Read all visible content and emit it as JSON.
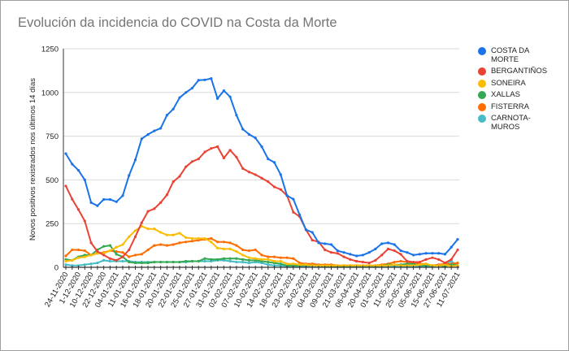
{
  "chart_data": {
    "type": "line",
    "title": "Evolución da incidencia do COVID na Costa da Morte",
    "xlabel": "",
    "ylabel": "Novos positivos rexistrados nos últimos 14 días",
    "ylim": [
      0,
      1250
    ],
    "yticks": [
      0,
      250,
      500,
      750,
      1000,
      1250
    ],
    "grid": true,
    "legend_position": "right",
    "x_tick_labels": [
      "24-11-2020",
      "1-12-2020",
      "10-12-2020",
      "22-12-2020",
      "04-01-2021",
      "11-01-2021",
      "16-01-2021",
      "18-01-2021",
      "20-01-2021",
      "22-01-2021",
      "25-01-2021",
      "27-01-2021",
      "31-01-2021",
      "02-02-2021",
      "07-02-2021",
      "10-02-2021",
      "14-02-2021",
      "18-02-2021",
      "23-02-2021",
      "28-02-2021",
      "04-03-2021",
      "09-03-2021",
      "21-03-2021",
      "06-04-2021",
      "20-04-2021",
      "01-05-2021",
      "11-05-2021",
      "25-05-2021",
      "05-06-2021",
      "15-06-2021",
      "27-06-2021",
      "11-07-2021"
    ],
    "n_points": 63,
    "series": [
      {
        "name": "COSTA DA MORTE",
        "color": "#1a73e8",
        "values": [
          650,
          590,
          555,
          500,
          370,
          352,
          388,
          388,
          375,
          410,
          525,
          615,
          735,
          760,
          780,
          795,
          870,
          905,
          970,
          1000,
          1025,
          1070,
          1072,
          1080,
          965,
          1010,
          975,
          870,
          790,
          760,
          740,
          690,
          620,
          600,
          530,
          410,
          390,
          300,
          215,
          200,
          140,
          135,
          130,
          95,
          85,
          75,
          65,
          70,
          85,
          105,
          135,
          140,
          130,
          95,
          85,
          70,
          75,
          80,
          80,
          80,
          75,
          115,
          160
        ]
      },
      {
        "name": "BERGANTIÑOS",
        "color": "#ea4335",
        "values": [
          465,
          390,
          330,
          265,
          140,
          90,
          70,
          50,
          40,
          60,
          100,
          175,
          255,
          320,
          335,
          370,
          415,
          490,
          520,
          575,
          605,
          620,
          660,
          680,
          690,
          625,
          670,
          630,
          565,
          545,
          530,
          510,
          490,
          460,
          445,
          410,
          315,
          290,
          215,
          155,
          145,
          100,
          85,
          80,
          60,
          45,
          35,
          30,
          25,
          40,
          70,
          105,
          95,
          75,
          35,
          30,
          30,
          45,
          55,
          45,
          25,
          45,
          100
        ]
      },
      {
        "name": "SONEIRA",
        "color": "#fbbc04",
        "values": [
          35,
          40,
          55,
          60,
          70,
          80,
          80,
          95,
          115,
          130,
          175,
          210,
          235,
          220,
          220,
          200,
          185,
          185,
          195,
          170,
          165,
          165,
          165,
          145,
          110,
          105,
          105,
          90,
          70,
          55,
          50,
          45,
          45,
          35,
          35,
          20,
          20,
          15,
          15,
          10,
          10,
          10,
          10,
          10,
          10,
          10,
          10,
          10,
          10,
          10,
          10,
          10,
          15,
          10,
          10,
          10,
          15,
          20,
          10,
          10,
          15,
          5,
          10
        ]
      },
      {
        "name": "XALLAS",
        "color": "#34a853",
        "values": [
          45,
          40,
          60,
          70,
          70,
          100,
          120,
          125,
          75,
          60,
          30,
          25,
          25,
          25,
          30,
          30,
          30,
          30,
          30,
          35,
          35,
          35,
          50,
          45,
          45,
          50,
          50,
          50,
          45,
          40,
          40,
          35,
          30,
          25,
          20,
          10,
          10,
          10,
          10,
          10,
          10,
          5,
          5,
          5,
          5,
          5,
          5,
          5,
          5,
          5,
          10,
          15,
          15,
          15,
          20,
          20,
          10,
          10,
          10,
          10,
          5,
          15,
          10
        ]
      },
      {
        "name": "FISTERRA",
        "color": "#ff6d01",
        "values": [
          65,
          100,
          100,
          95,
          70,
          80,
          85,
          95,
          90,
          85,
          60,
          70,
          75,
          100,
          125,
          130,
          125,
          130,
          140,
          145,
          150,
          155,
          160,
          165,
          145,
          145,
          140,
          125,
          100,
          95,
          100,
          70,
          60,
          60,
          55,
          55,
          50,
          25,
          20,
          20,
          15,
          15,
          15,
          10,
          10,
          10,
          10,
          10,
          10,
          10,
          15,
          20,
          30,
          35,
          30,
          25,
          20,
          20,
          10,
          15,
          20,
          20,
          25
        ]
      },
      {
        "name": "CARNOTA-MUROS",
        "color": "#46bdc6",
        "values": [
          15,
          10,
          10,
          15,
          20,
          25,
          40,
          35,
          35,
          35,
          35,
          30,
          30,
          30,
          30,
          30,
          30,
          30,
          30,
          30,
          35,
          35,
          35,
          35,
          40,
          40,
          35,
          30,
          30,
          25,
          30,
          25,
          15,
          10,
          10,
          5,
          5,
          5,
          5,
          5,
          5,
          5,
          5,
          5,
          5,
          5,
          5,
          5,
          5,
          5,
          5,
          5,
          5,
          5,
          5,
          5,
          5,
          5,
          5,
          10,
          20,
          35,
          10
        ]
      }
    ]
  },
  "legend": {
    "items": [
      {
        "label": "COSTA DA MORTE",
        "color": "#1a73e8"
      },
      {
        "label": "BERGANTIÑOS",
        "color": "#ea4335"
      },
      {
        "label": "SONEIRA",
        "color": "#fbbc04"
      },
      {
        "label": "XALLAS",
        "color": "#34a853"
      },
      {
        "label": "FISTERRA",
        "color": "#ff6d01"
      },
      {
        "label": "CARNOTA-MUROS",
        "color": "#46bdc6"
      }
    ]
  }
}
